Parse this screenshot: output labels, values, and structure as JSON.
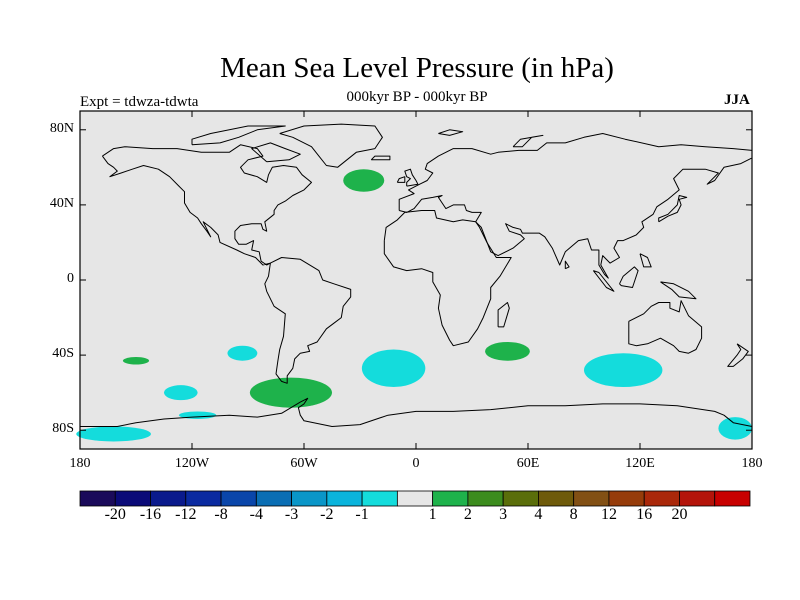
{
  "title": "Mean Sea Level Pressure (in hPa)",
  "subtitle": "000kyr BP - 000kyr BP",
  "expt_label": "Expt = tdwza-tdwta",
  "season": "JJA",
  "map": {
    "projection": "cylindrical equidistant",
    "lon_range": [
      -180,
      180
    ],
    "lat_range": [
      -90,
      90
    ],
    "background_color": "#e6e6e6",
    "coastline_color": "#000000",
    "lat_ticks": [
      {
        "value": 80,
        "label": "80N"
      },
      {
        "value": 40,
        "label": "40N"
      },
      {
        "value": 0,
        "label": "0"
      },
      {
        "value": -40,
        "label": "40S"
      },
      {
        "value": -80,
        "label": "80S"
      }
    ],
    "lon_ticks": [
      {
        "value": -180,
        "label": "180"
      },
      {
        "value": -120,
        "label": "120W"
      },
      {
        "value": -60,
        "label": "60W"
      },
      {
        "value": 0,
        "label": "0"
      },
      {
        "value": 60,
        "label": "60E"
      },
      {
        "value": 120,
        "label": "120E"
      },
      {
        "value": 180,
        "label": "180"
      }
    ],
    "anomaly_regions": [
      {
        "name": "north-atlantic-positive",
        "lon": -28,
        "lat": 53,
        "rlon": 11,
        "rlat": 6,
        "level": "1 to 2",
        "color": "#1eb24b"
      },
      {
        "name": "south-atlantic-negative",
        "lon": -12,
        "lat": -47,
        "rlon": 17,
        "rlat": 10,
        "level": "-2 to -1",
        "color": "#14dcdc"
      },
      {
        "name": "south-africa-positive",
        "lon": 49,
        "lat": -38,
        "rlon": 12,
        "rlat": 5,
        "level": "1 to 2",
        "color": "#1eb24b"
      },
      {
        "name": "south-indian-negative",
        "lon": 111,
        "lat": -48,
        "rlon": 21,
        "rlat": 9,
        "level": "-2 to -1",
        "color": "#14dcdc"
      },
      {
        "name": "drake-passage-positive",
        "lon": -67,
        "lat": -60,
        "rlon": 22,
        "rlat": 8,
        "level": "1 to 2",
        "color": "#1eb24b"
      },
      {
        "name": "south-pacific-negative-1",
        "lon": -93,
        "lat": -39,
        "rlon": 8,
        "rlat": 4,
        "level": "-2 to -1",
        "color": "#14dcdc"
      },
      {
        "name": "south-pacific-negative-2",
        "lon": -126,
        "lat": -60,
        "rlon": 9,
        "rlat": 4,
        "level": "-2 to -1",
        "color": "#14dcdc"
      },
      {
        "name": "south-pacific-negative-3",
        "lon": -117,
        "lat": -72,
        "rlon": 10,
        "rlat": 2,
        "level": "-2 to -1",
        "color": "#14dcdc"
      },
      {
        "name": "ross-sea-negative",
        "lon": -162,
        "lat": -82,
        "rlon": 20,
        "rlat": 4,
        "level": "-2 to -1",
        "color": "#14dcdc"
      },
      {
        "name": "east-antarctic-negative",
        "lon": 171,
        "lat": -79,
        "rlon": 9,
        "rlat": 6,
        "level": "-2 to -1",
        "color": "#14dcdc"
      },
      {
        "name": "south-pacific-positive",
        "lon": -150,
        "lat": -43,
        "rlon": 7,
        "rlat": 2,
        "level": "1 to 2",
        "color": "#1eb24b"
      }
    ]
  },
  "colorbar": {
    "colors": [
      "#1a0a5a",
      "#0a0a78",
      "#0a1a8c",
      "#0a2aa0",
      "#0a46aa",
      "#0a6eb4",
      "#0a96c8",
      "#0ab4dc",
      "#14dcdc",
      "#e6e6e6",
      "#1eb24b",
      "#3c8c1e",
      "#5a6e0a",
      "#6e5a0a",
      "#825014",
      "#963c0a",
      "#aa280a",
      "#b4140a",
      "#c80000"
    ],
    "labels": [
      "-20",
      "-16",
      "-12",
      "-8",
      "-4",
      "-3",
      "-2",
      "-1",
      "1",
      "2",
      "3",
      "4",
      "8",
      "12",
      "16",
      "20"
    ]
  }
}
